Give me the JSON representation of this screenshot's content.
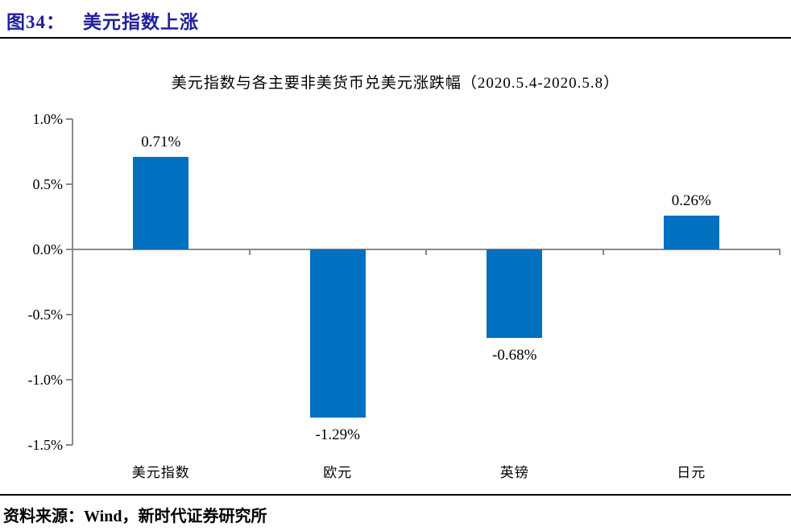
{
  "header": {
    "figure_label": "图34：",
    "figure_title": "美元指数上涨",
    "accent_color": "#21219b"
  },
  "chart_data": {
    "type": "bar",
    "title": "美元指数与各主要非美货币兑美元涨跌幅（2020.5.4-2020.5.8）",
    "categories": [
      "美元指数",
      "欧元",
      "英镑",
      "日元"
    ],
    "values": [
      0.71,
      -1.29,
      -0.68,
      0.26
    ],
    "data_labels": [
      "0.71%",
      "-1.29%",
      "-0.68%",
      "0.26%"
    ],
    "y_axis": {
      "ticks": [
        1.0,
        0.5,
        0.0,
        -0.5,
        -1.0,
        -1.5
      ],
      "tick_labels": [
        "1.0%",
        "0.5%",
        "0.0%",
        "-0.5%",
        "-1.0%",
        "-1.5%"
      ],
      "min": -1.5,
      "max": 1.0
    },
    "xlabel": "",
    "ylabel": "",
    "grid": false,
    "legend": "none",
    "bar_color": "#0070C0",
    "axis_color": "#898989",
    "text_color": "#000000"
  },
  "footer": {
    "source_label": "资料来源：",
    "source_text": "Wind，新时代证券研究所"
  }
}
